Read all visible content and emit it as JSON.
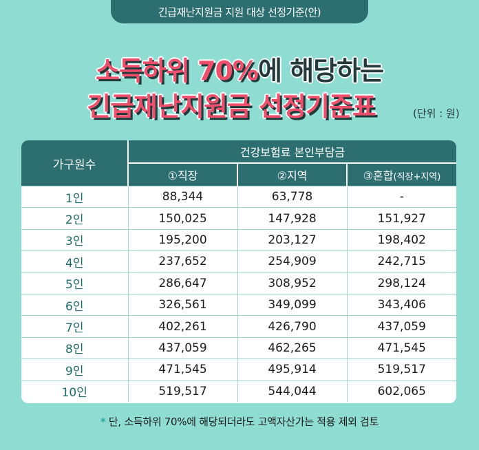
{
  "header_tab": "긴급재난지원금 지원 대상 선정기준(안)",
  "title": {
    "line1_accent": "소득하위 70%",
    "line1_rest": "에 해당하는",
    "line2": "긴급재난지원금 선정기준표"
  },
  "unit_note": "(단위 : 원)",
  "table": {
    "col_household": "가구원수",
    "col_group": "건강보험료 본인부담금",
    "sub_cols": [
      "①직장",
      "②지역",
      "③혼합"
    ],
    "sub_col3_suffix": "(직장+지역)",
    "rows": [
      {
        "household": "1인",
        "work": "88,344",
        "region": "63,778",
        "mixed": "-"
      },
      {
        "household": "2인",
        "work": "150,025",
        "region": "147,928",
        "mixed": "151,927"
      },
      {
        "household": "3인",
        "work": "195,200",
        "region": "203,127",
        "mixed": "198,402"
      },
      {
        "household": "4인",
        "work": "237,652",
        "region": "254,909",
        "mixed": "242,715"
      },
      {
        "household": "5인",
        "work": "286,647",
        "region": "308,952",
        "mixed": "298,124"
      },
      {
        "household": "6인",
        "work": "326,561",
        "region": "349,099",
        "mixed": "343,406"
      },
      {
        "household": "7인",
        "work": "402,261",
        "region": "426,790",
        "mixed": "437,059"
      },
      {
        "household": "8인",
        "work": "437,059",
        "region": "462,265",
        "mixed": "471,545"
      },
      {
        "household": "9인",
        "work": "471,545",
        "region": "495,914",
        "mixed": "519,517"
      },
      {
        "household": "10인",
        "work": "519,517",
        "region": "544,044",
        "mixed": "602,065"
      }
    ]
  },
  "footnote_marker": "*",
  "footnote": " 단, 소득하위 70%에 해당되더라도 고액자산가는 적용 제외 검토",
  "colors": {
    "background": "#8fdcd2",
    "header": "#2d6f70",
    "title_accent": "#ef4f6b"
  }
}
